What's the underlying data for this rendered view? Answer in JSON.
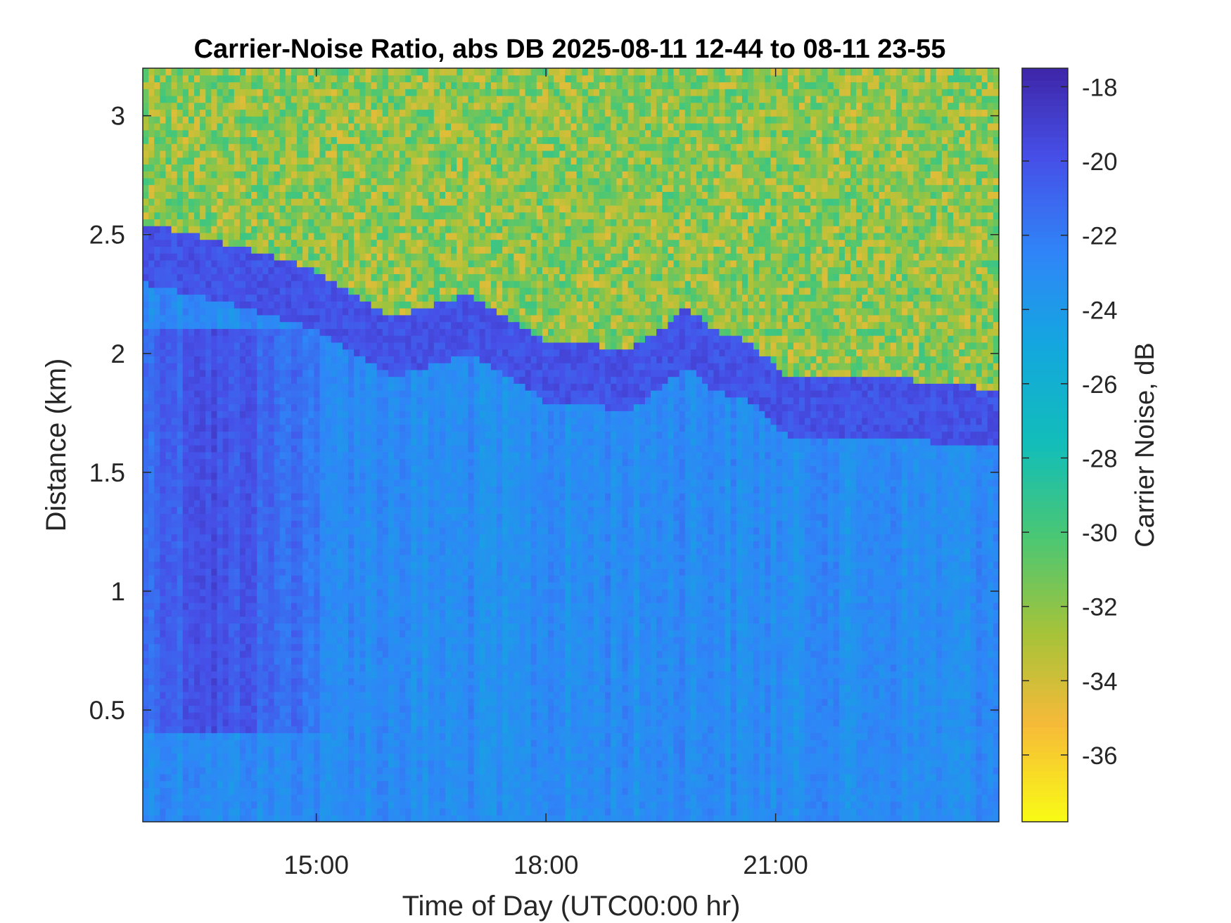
{
  "chart_data": {
    "type": "heatmap",
    "title": "Carrier-Noise Ratio, abs DB 2025-08-11 12-44 to 08-11 23-55",
    "xlabel": "Time of Day (UTC00:00 hr)",
    "ylabel": "Distance (km)",
    "colorbar_label": "Carrier Noise, dB",
    "colormap": "parula (reversed: dark blue = high, yellow = low)",
    "xlim": [
      "12:44",
      "23:55"
    ],
    "ylim": [
      0.03,
      3.2
    ],
    "clim": [
      -37.8,
      -17.5
    ],
    "x_ticks": [
      "15:00",
      "18:00",
      "21:00"
    ],
    "y_ticks": [
      "0.5",
      "1",
      "1.5",
      "2",
      "2.5",
      "3"
    ],
    "colorbar_ticks": [
      "-18",
      "-20",
      "-22",
      "-24",
      "-26",
      "-28",
      "-30",
      "-32",
      "-34",
      "-36"
    ],
    "boundary_layer_top_km": {
      "times": [
        "12:44",
        "14:00",
        "15:00",
        "15:30",
        "16:00",
        "16:30",
        "17:00",
        "17:30",
        "18:00",
        "18:30",
        "19:00",
        "19:30",
        "19:50",
        "20:10",
        "20:40",
        "21:10",
        "21:40",
        "22:00",
        "22:30",
        "23:00",
        "23:55"
      ],
      "values": [
        2.45,
        2.35,
        2.25,
        2.15,
        2.05,
        2.1,
        2.15,
        2.05,
        1.95,
        1.95,
        1.9,
        2.0,
        2.1,
        2.0,
        1.95,
        1.8,
        1.8,
        1.8,
        1.8,
        1.78,
        1.75
      ]
    },
    "approx_values_dB": {
      "below_boundary_layer": -23,
      "above_boundary_layer": -32,
      "strongest_core": -19
    },
    "grid": false,
    "legend": "colorbar right"
  }
}
